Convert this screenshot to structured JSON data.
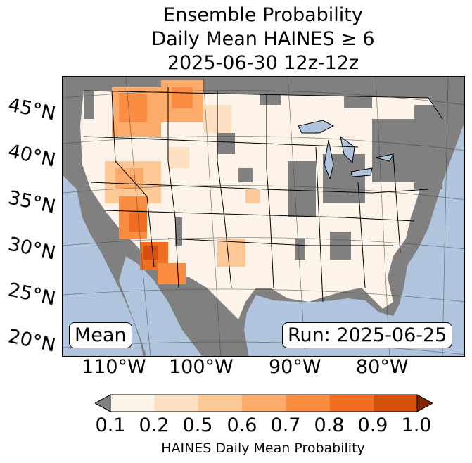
{
  "title": {
    "line1": "Ensemble Probability",
    "line2": "Daily Mean HAINES ≥ 6",
    "line3": "2025-06-30 12z-12z"
  },
  "map": {
    "lat_labels": [
      "45°N",
      "40°N",
      "35°N",
      "30°N",
      "25°N",
      "20°N"
    ],
    "lon_labels": [
      "110°W",
      "100°W",
      "90°W",
      "80°W"
    ],
    "mean_label": "Mean",
    "run_label": "Run: 2025-06-25",
    "ocean_color": "#b0c4de",
    "land_masked_color": "#808080",
    "lake_color": "#b0c4de"
  },
  "colorbar": {
    "ticks": [
      "0.1",
      "0.2",
      "0.5",
      "0.6",
      "0.7",
      "0.8",
      "0.9",
      "1.0"
    ],
    "colors": [
      "#fef3e8",
      "#fde0c2",
      "#fdc895",
      "#fdab6a",
      "#fb8d42",
      "#f06d22",
      "#d5500c"
    ],
    "under_color": "#808080",
    "over_color": "#7f2704",
    "label": "HAINES Daily Mean Probability"
  }
}
